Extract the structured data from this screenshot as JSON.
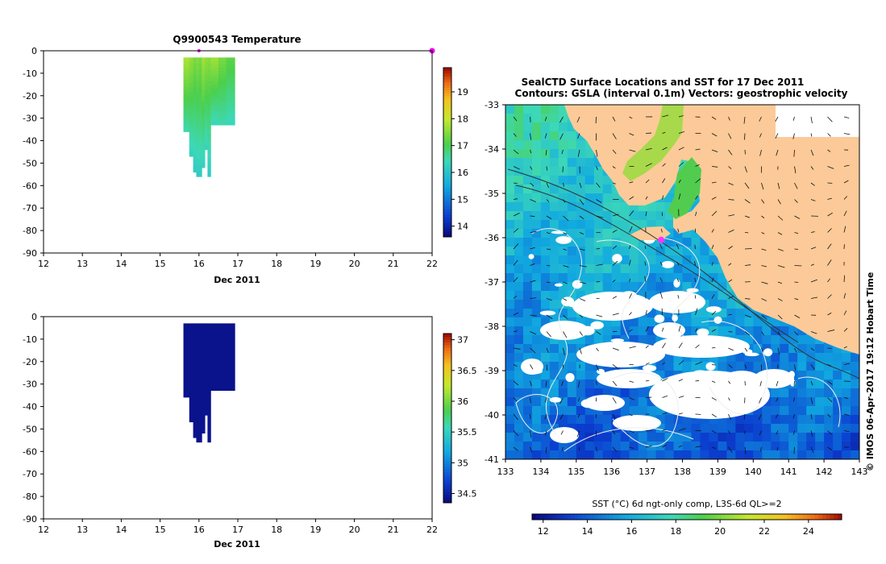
{
  "chart_data": [
    {
      "type": "heatmap",
      "title": "Q9900543  Temperature",
      "xlabel": "Dec 2011",
      "ylabel": "",
      "xlim": [
        12,
        22
      ],
      "ylim": [
        -90,
        0
      ],
      "x_ticks": [
        "12",
        "13",
        "14",
        "15",
        "16",
        "17",
        "18",
        "19",
        "20",
        "21",
        "22"
      ],
      "y_ticks": [
        "0",
        "-10",
        "-20",
        "-30",
        "-40",
        "-50",
        "-60",
        "-70",
        "-80",
        "-90"
      ],
      "colorbar": {
        "min": 13.6,
        "max": 19.9,
        "ticks": [
          "14",
          "15",
          "16",
          "17",
          "18",
          "19"
        ]
      },
      "profile_markers_day": [
        16.0,
        22.0
      ],
      "profiles": [
        {
          "t0": 15.6,
          "t1": 15.75,
          "depth": -36,
          "surface": 17.8,
          "bottom": 16.5
        },
        {
          "t0": 15.75,
          "t1": 15.85,
          "depth": -47,
          "surface": 17.6,
          "bottom": 16.3
        },
        {
          "t0": 15.85,
          "t1": 15.93,
          "depth": -54,
          "surface": 17.4,
          "bottom": 16.2
        },
        {
          "t0": 15.93,
          "t1": 16.0,
          "depth": -56,
          "surface": 17.5,
          "bottom": 16.2
        },
        {
          "t0": 16.0,
          "t1": 16.07,
          "depth": -56,
          "surface": 17.4,
          "bottom": 16.2
        },
        {
          "t0": 16.07,
          "t1": 16.15,
          "depth": -52,
          "surface": 17.7,
          "bottom": 16.3
        },
        {
          "t0": 16.15,
          "t1": 16.22,
          "depth": -44,
          "surface": 17.6,
          "bottom": 16.3
        },
        {
          "t0": 16.22,
          "t1": 16.3,
          "depth": -56,
          "surface": 17.5,
          "bottom": 16.2
        },
        {
          "t0": 16.3,
          "t1": 16.5,
          "depth": -33,
          "surface": 17.7,
          "bottom": 16.4
        },
        {
          "t0": 16.5,
          "t1": 16.7,
          "depth": -33,
          "surface": 17.4,
          "bottom": 16.5
        },
        {
          "t0": 16.7,
          "t1": 16.92,
          "depth": -33,
          "surface": 17.2,
          "bottom": 16.4
        }
      ]
    },
    {
      "type": "heatmap",
      "title": "",
      "xlabel": "Dec 2011",
      "ylabel": "",
      "xlim": [
        12,
        22
      ],
      "ylim": [
        -90,
        0
      ],
      "x_ticks": [
        "12",
        "13",
        "14",
        "15",
        "16",
        "17",
        "18",
        "19",
        "20",
        "21",
        "22"
      ],
      "y_ticks": [
        "0",
        "-10",
        "-20",
        "-30",
        "-40",
        "-50",
        "-60",
        "-70",
        "-80",
        "-90"
      ],
      "colorbar": {
        "min": 34.35,
        "max": 37.1,
        "ticks": [
          "34.5",
          "35",
          "35.5",
          "36",
          "36.5",
          "37"
        ]
      },
      "profiles_value": 34.4
    },
    {
      "type": "map",
      "title_lines": [
        "SealCTD Surface Locations and SST for 17 Dec 2011",
        "Contours: GSLA (interval 0.1m) Vectors: geostrophic velocity"
      ],
      "xlim": [
        133,
        143
      ],
      "ylim": [
        -41,
        -33
      ],
      "x_ticks": [
        "133",
        "134",
        "135",
        "136",
        "137",
        "138",
        "139",
        "140",
        "141",
        "142",
        "143"
      ],
      "y_ticks": [
        "-33",
        "-34",
        "-35",
        "-36",
        "-37",
        "-38",
        "-39",
        "-40",
        "-41"
      ],
      "colorbar": {
        "label": "SST (°C) 6d ngt-only comp, L3S-6d QL>=2",
        "min": 11.5,
        "max": 25.5,
        "ticks": [
          "12",
          "14",
          "16",
          "18",
          "20",
          "22",
          "24"
        ]
      },
      "seal_location": {
        "lon": 137.4,
        "lat": -36.05
      },
      "side_label": "© IMOS 06-Apr-2017 19:12 Hobart Time"
    }
  ]
}
